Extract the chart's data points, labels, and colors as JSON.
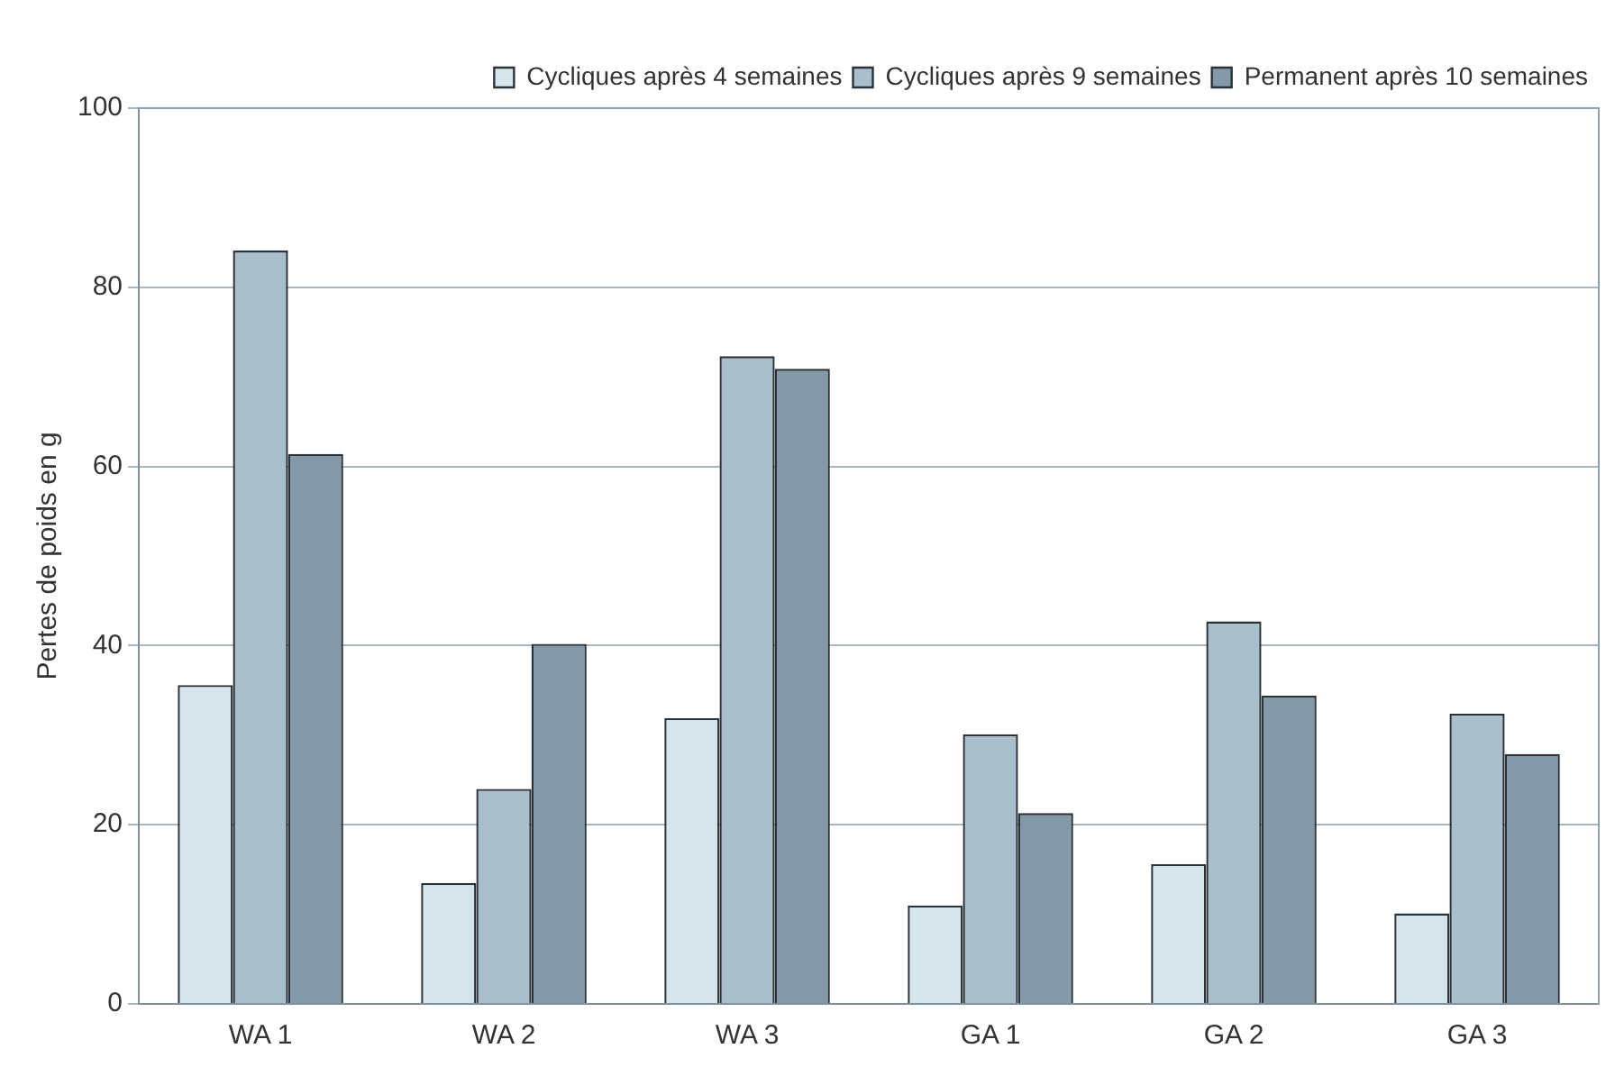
{
  "chart_data": {
    "type": "bar",
    "ylabel": "Pertes de poids en g",
    "categories": [
      "WA 1",
      "WA 2",
      "WA 3",
      "GA 1",
      "GA 2",
      "GA 3"
    ],
    "series": [
      {
        "name": "Cycliques après 4 semaines",
        "color": "#d6e4ec",
        "values": [
          35.6,
          13.5,
          31.9,
          11,
          15.6,
          10.1
        ]
      },
      {
        "name": "Cycliques après 9 semaines",
        "color": "#a9bfcc",
        "values": [
          84.1,
          24,
          72.3,
          30.1,
          42.7,
          32.4
        ]
      },
      {
        "name": "Permanent après 10 semaines",
        "color": "#8399a8",
        "values": [
          61.4,
          40.2,
          70.9,
          21.3,
          34.4,
          27.9
        ]
      }
    ],
    "ylim": [
      0,
      100
    ],
    "yticks": [
      0,
      20,
      40,
      60,
      80,
      100
    ],
    "grid": "y",
    "legend": "top right"
  }
}
